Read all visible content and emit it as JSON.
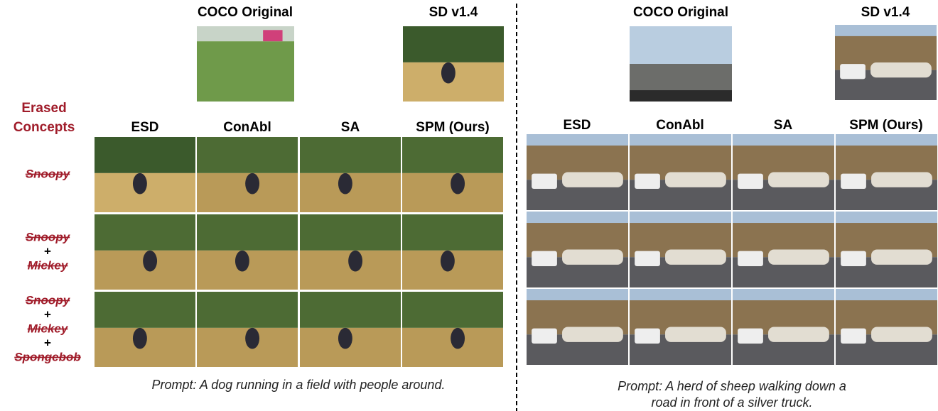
{
  "left_panel": {
    "top_headers": [
      "COCO Original",
      "SD v1.4"
    ],
    "erased_label": [
      "Erased",
      "Concepts"
    ],
    "column_headers": [
      "ESD",
      "ConAbl",
      "SA",
      "SPM (Ours)"
    ],
    "row_labels": [
      [
        "Snoopy"
      ],
      [
        "Snoopy",
        "+",
        "Mickey"
      ],
      [
        "Snoopy",
        "+",
        "Mickey",
        "+",
        "Spongebob"
      ]
    ],
    "prompt": [
      "Prompt: A dog running in a field with people around."
    ]
  },
  "right_panel": {
    "top_headers": [
      "COCO Original",
      "SD v1.4"
    ],
    "column_headers": [
      "ESD",
      "ConAbl",
      "SA",
      "SPM (Ours)"
    ],
    "prompt": [
      "Prompt: A herd of sheep walking down a",
      "road in front of a silver truck."
    ]
  }
}
